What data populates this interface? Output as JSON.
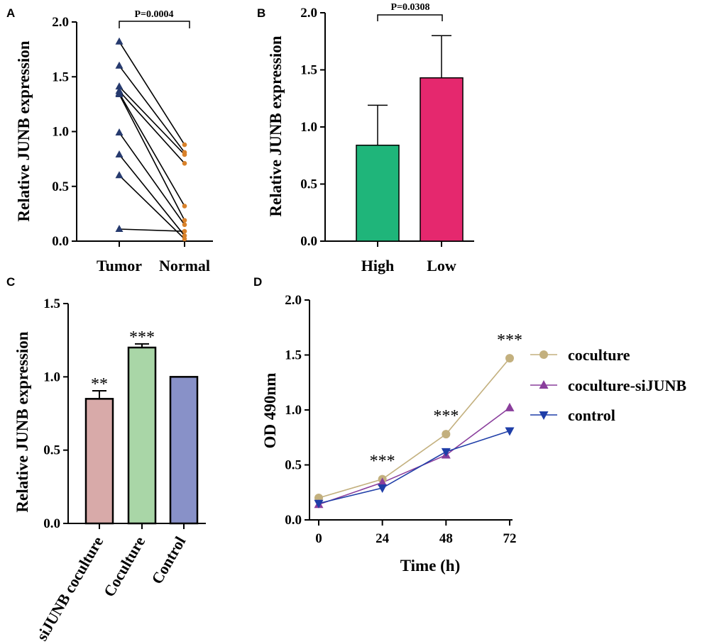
{
  "chart_data": [
    {
      "panel": "A",
      "type": "scatter",
      "subtype": "paired",
      "ylabel": "Relative JUNB expression",
      "ylim": [
        0,
        2.0
      ],
      "yticks": [
        "0.0",
        "0.5",
        "1.0",
        "1.5",
        "2.0"
      ],
      "categories": [
        "Tumor",
        "Normal"
      ],
      "pvalue": "P=0.0004",
      "pairs": [
        {
          "tumor": 1.82,
          "normal": 0.88
        },
        {
          "tumor": 1.6,
          "normal": 0.81
        },
        {
          "tumor": 1.41,
          "normal": 0.79
        },
        {
          "tumor": 1.37,
          "normal": 0.71
        },
        {
          "tumor": 1.35,
          "normal": 0.32
        },
        {
          "tumor": 1.34,
          "normal": 0.19
        },
        {
          "tumor": 0.99,
          "normal": 0.15
        },
        {
          "tumor": 0.79,
          "normal": 0.05
        },
        {
          "tumor": 0.6,
          "normal": 0.02
        },
        {
          "tumor": 0.11,
          "normal": 0.09
        }
      ],
      "colors": {
        "tumor": "#263a6e",
        "normal": "#d9822b"
      }
    },
    {
      "panel": "B",
      "type": "bar",
      "ylabel": "Relative JUNB expression",
      "ylim": [
        0,
        2.0
      ],
      "yticks": [
        "0.0",
        "0.5",
        "1.0",
        "1.5",
        "2.0"
      ],
      "categories": [
        "High",
        "Low"
      ],
      "values": [
        0.84,
        1.43
      ],
      "errors": [
        0.35,
        0.37
      ],
      "colors": [
        "#1fb57a",
        "#e5286e"
      ],
      "pvalue": "P=0.0308"
    },
    {
      "panel": "C",
      "type": "bar",
      "ylabel": "Relative JUNB expression",
      "ylim": [
        0,
        1.5
      ],
      "yticks": [
        "0.0",
        "0.5",
        "1.0",
        "1.5"
      ],
      "categories": [
        "siJUNB coculture",
        "Coculture",
        "Control"
      ],
      "values": [
        0.85,
        1.2,
        1.0
      ],
      "errors": [
        0.055,
        0.025,
        0
      ],
      "colors": [
        "#d8aaa9",
        "#a9d6a7",
        "#8891c8"
      ],
      "annotations": [
        "**",
        "***",
        ""
      ]
    },
    {
      "panel": "D",
      "type": "line",
      "xlabel": "Time (h)",
      "ylabel": "OD 490nm",
      "ylim": [
        0,
        2.0
      ],
      "yticks": [
        "0.0",
        "0.5",
        "1.0",
        "1.5",
        "2.0"
      ],
      "x": [
        0,
        24,
        48,
        72
      ],
      "xticks": [
        "0",
        "24",
        "48",
        "72"
      ],
      "series": [
        {
          "name": "coculture",
          "values": [
            0.2,
            0.37,
            0.78,
            1.47
          ],
          "color": "#c3b07e",
          "marker": "circle"
        },
        {
          "name": "coculture-siJUNB",
          "values": [
            0.14,
            0.34,
            0.59,
            1.02
          ],
          "color": "#8a3e9c",
          "marker": "triangle-up"
        },
        {
          "name": "control",
          "values": [
            0.15,
            0.29,
            0.62,
            0.81
          ],
          "color": "#1f3ea8",
          "marker": "triangle-down"
        }
      ],
      "annotations": [
        {
          "x": 24,
          "text": "***"
        },
        {
          "x": 48,
          "text": "***"
        },
        {
          "x": 72,
          "text": "***"
        }
      ]
    }
  ]
}
